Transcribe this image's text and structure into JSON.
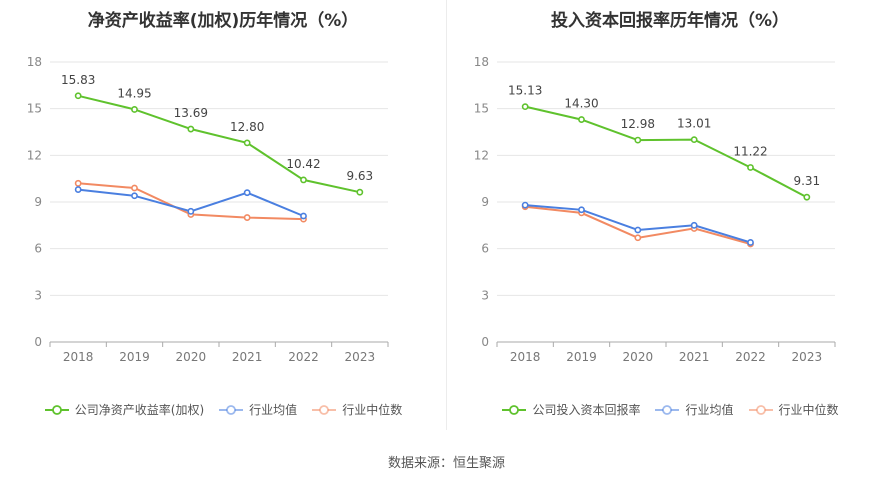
{
  "source_label": "数据来源：恒生聚源",
  "chart_data": [
    {
      "type": "line",
      "title": "净资产收益率(加权)历年情况（%）",
      "categories": [
        "2018",
        "2019",
        "2020",
        "2021",
        "2022",
        "2023"
      ],
      "ylim": [
        0,
        18
      ],
      "yticks": [
        0,
        3,
        6,
        9,
        12,
        15,
        18
      ],
      "grid": true,
      "legend_position": "bottom",
      "series": [
        {
          "name": "公司净资产收益率(加权)",
          "color": "#5fc22d",
          "values": [
            15.83,
            14.95,
            13.69,
            12.8,
            10.42,
            9.63
          ],
          "labels": [
            "15.83",
            "14.95",
            "13.69",
            "12.80",
            "10.42",
            "9.63"
          ]
        },
        {
          "name": "行业均值",
          "color": "#4a7fe0",
          "values": [
            9.8,
            9.4,
            8.4,
            9.6,
            8.1,
            null
          ]
        },
        {
          "name": "行业中位数",
          "color": "#f28a62",
          "values": [
            10.2,
            9.9,
            8.2,
            8.0,
            7.9,
            null
          ]
        }
      ]
    },
    {
      "type": "line",
      "title": "投入资本回报率历年情况（%）",
      "categories": [
        "2018",
        "2019",
        "2020",
        "2021",
        "2022",
        "2023"
      ],
      "ylim": [
        0,
        18
      ],
      "yticks": [
        0,
        3,
        6,
        9,
        12,
        15,
        18
      ],
      "grid": true,
      "legend_position": "bottom",
      "series": [
        {
          "name": "公司投入资本回报率",
          "color": "#5fc22d",
          "values": [
            15.13,
            14.3,
            12.98,
            13.01,
            11.22,
            9.31
          ],
          "labels": [
            "15.13",
            "14.30",
            "12.98",
            "13.01",
            "11.22",
            "9.31"
          ]
        },
        {
          "name": "行业均值",
          "color": "#4a7fe0",
          "values": [
            8.8,
            8.5,
            7.2,
            7.5,
            6.4,
            null
          ]
        },
        {
          "name": "行业中位数",
          "color": "#f28a62",
          "values": [
            8.7,
            8.3,
            6.7,
            7.3,
            6.3,
            null
          ]
        }
      ]
    }
  ]
}
